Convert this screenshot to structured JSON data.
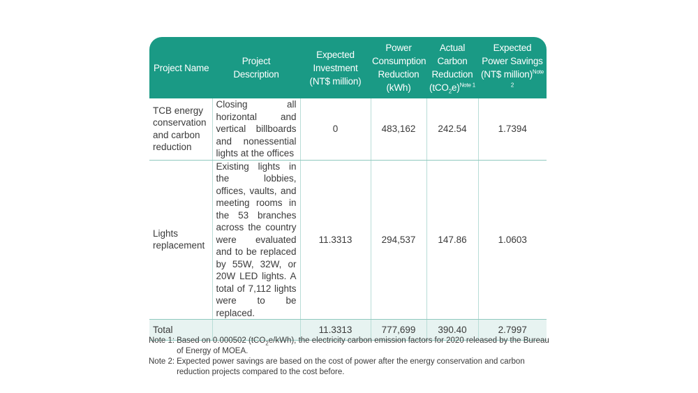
{
  "table": {
    "headers": {
      "project_name": "Project Name",
      "project_description": "Project Description",
      "expected_investment": "Expected Investment (NT$ million)",
      "power_reduction": "Power Consumption Reduction (kWh)",
      "carbon_reduction_prefix": "Actual Carbon Reduction (tCO",
      "carbon_reduction_sub": "2",
      "carbon_reduction_suffix": "e)",
      "carbon_reduction_note": "Note 1",
      "power_savings": "Expected Power Savings (NT$ million)",
      "power_savings_note": "Note 2"
    },
    "rows": [
      {
        "name": "TCB energy conservation and carbon reduction",
        "description": "Closing all horizontal and vertical billboards and nonessential lights at the offices",
        "investment": "0",
        "power_reduction": "483,162",
        "carbon_reduction": "242.54",
        "savings": "1.7394"
      },
      {
        "name": "Lights replacement",
        "description": "Existing lights in the lobbies, offices, vaults, and meeting rooms in the 53 branches across the country were evaluated and to be replaced by 55W, 32W, or 20W LED lights. A total of 7,112 lights were to be replaced.",
        "investment": "11.3313",
        "power_reduction": "294,537",
        "carbon_reduction": "147.86",
        "savings": "1.0603"
      }
    ],
    "total": {
      "label": "Total",
      "description": "",
      "investment": "11.3313",
      "power_reduction": "777,699",
      "carbon_reduction": "390.40",
      "savings": "2.7997"
    }
  },
  "notes": {
    "note1_label": "Note 1:",
    "note1_prefix": "Based on 0.000502 (tCO",
    "note1_sub": "2",
    "note1_suffix": "e/kWh), the electricity carbon emission factors for 2020 released by the Bureau of Energy of MOEA.",
    "note2_label": "Note 2:",
    "note2_text": "Expected power savings are based on the cost of power after the energy conservation and carbon reduction projects compared to the cost before."
  }
}
